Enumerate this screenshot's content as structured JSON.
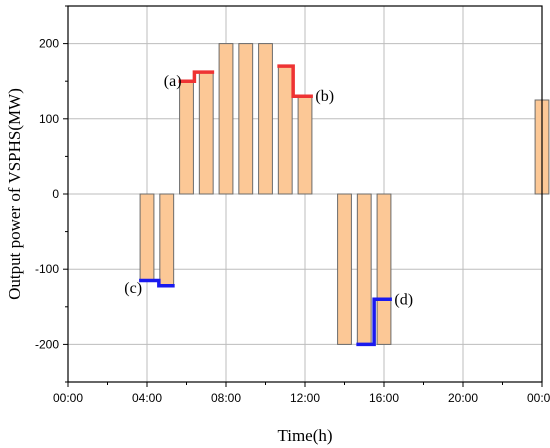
{
  "chart_data": {
    "type": "bar",
    "xlabel": "Time(h)",
    "ylabel": "Output power of VSPHS(MW)",
    "xlim": [
      0,
      24
    ],
    "ylim": [
      -250,
      250
    ],
    "xtick_values": [
      0,
      4,
      8,
      12,
      16,
      20,
      24
    ],
    "xtick_labels": [
      "00:00",
      "04:00",
      "08:00",
      "12:00",
      "16:00",
      "20:00",
      "00:00"
    ],
    "ytick_values": [
      -200,
      -100,
      0,
      100,
      200
    ],
    "ytick_labels": [
      "-200",
      "-100",
      "0",
      "100",
      "200"
    ],
    "grid": true,
    "bar_width_hours": 0.7,
    "bar_color": "#fcc896",
    "bar_edge_color": "#6b6b6b",
    "bars": [
      {
        "x": 4,
        "value": -115
      },
      {
        "x": 5,
        "value": -122
      },
      {
        "x": 6,
        "value": 150
      },
      {
        "x": 7,
        "value": 162
      },
      {
        "x": 8,
        "value": 200
      },
      {
        "x": 9,
        "value": 200
      },
      {
        "x": 10,
        "value": 200
      },
      {
        "x": 11,
        "value": 170
      },
      {
        "x": 12,
        "value": 130
      },
      {
        "x": 14,
        "value": -200
      },
      {
        "x": 15,
        "value": -200
      },
      {
        "x": 16,
        "value": -200
      },
      {
        "x": 24,
        "value": 125
      }
    ],
    "step_lines": [
      {
        "color": "#ee3333",
        "points": [
          [
            5.6,
            150
          ],
          [
            6.4,
            150
          ],
          [
            6.4,
            162
          ],
          [
            7.4,
            162
          ]
        ]
      },
      {
        "color": "#ee3333",
        "points": [
          [
            10.6,
            170
          ],
          [
            11.4,
            170
          ],
          [
            11.4,
            130
          ],
          [
            12.4,
            130
          ]
        ]
      },
      {
        "color": "#1a1aee",
        "points": [
          [
            3.6,
            -115
          ],
          [
            4.6,
            -115
          ],
          [
            4.6,
            -122
          ],
          [
            5.4,
            -122
          ]
        ]
      },
      {
        "color": "#1a1aee",
        "points": [
          [
            14.6,
            -200
          ],
          [
            15.5,
            -200
          ],
          [
            15.5,
            -140
          ],
          [
            16.4,
            -140
          ]
        ]
      }
    ],
    "annotations": [
      {
        "text": "(a)",
        "x": 5.3,
        "y": 150
      },
      {
        "text": "(b)",
        "x": 13.0,
        "y": 130
      },
      {
        "text": "(c)",
        "x": 3.3,
        "y": -125
      },
      {
        "text": "(d)",
        "x": 17.0,
        "y": -140
      }
    ]
  }
}
